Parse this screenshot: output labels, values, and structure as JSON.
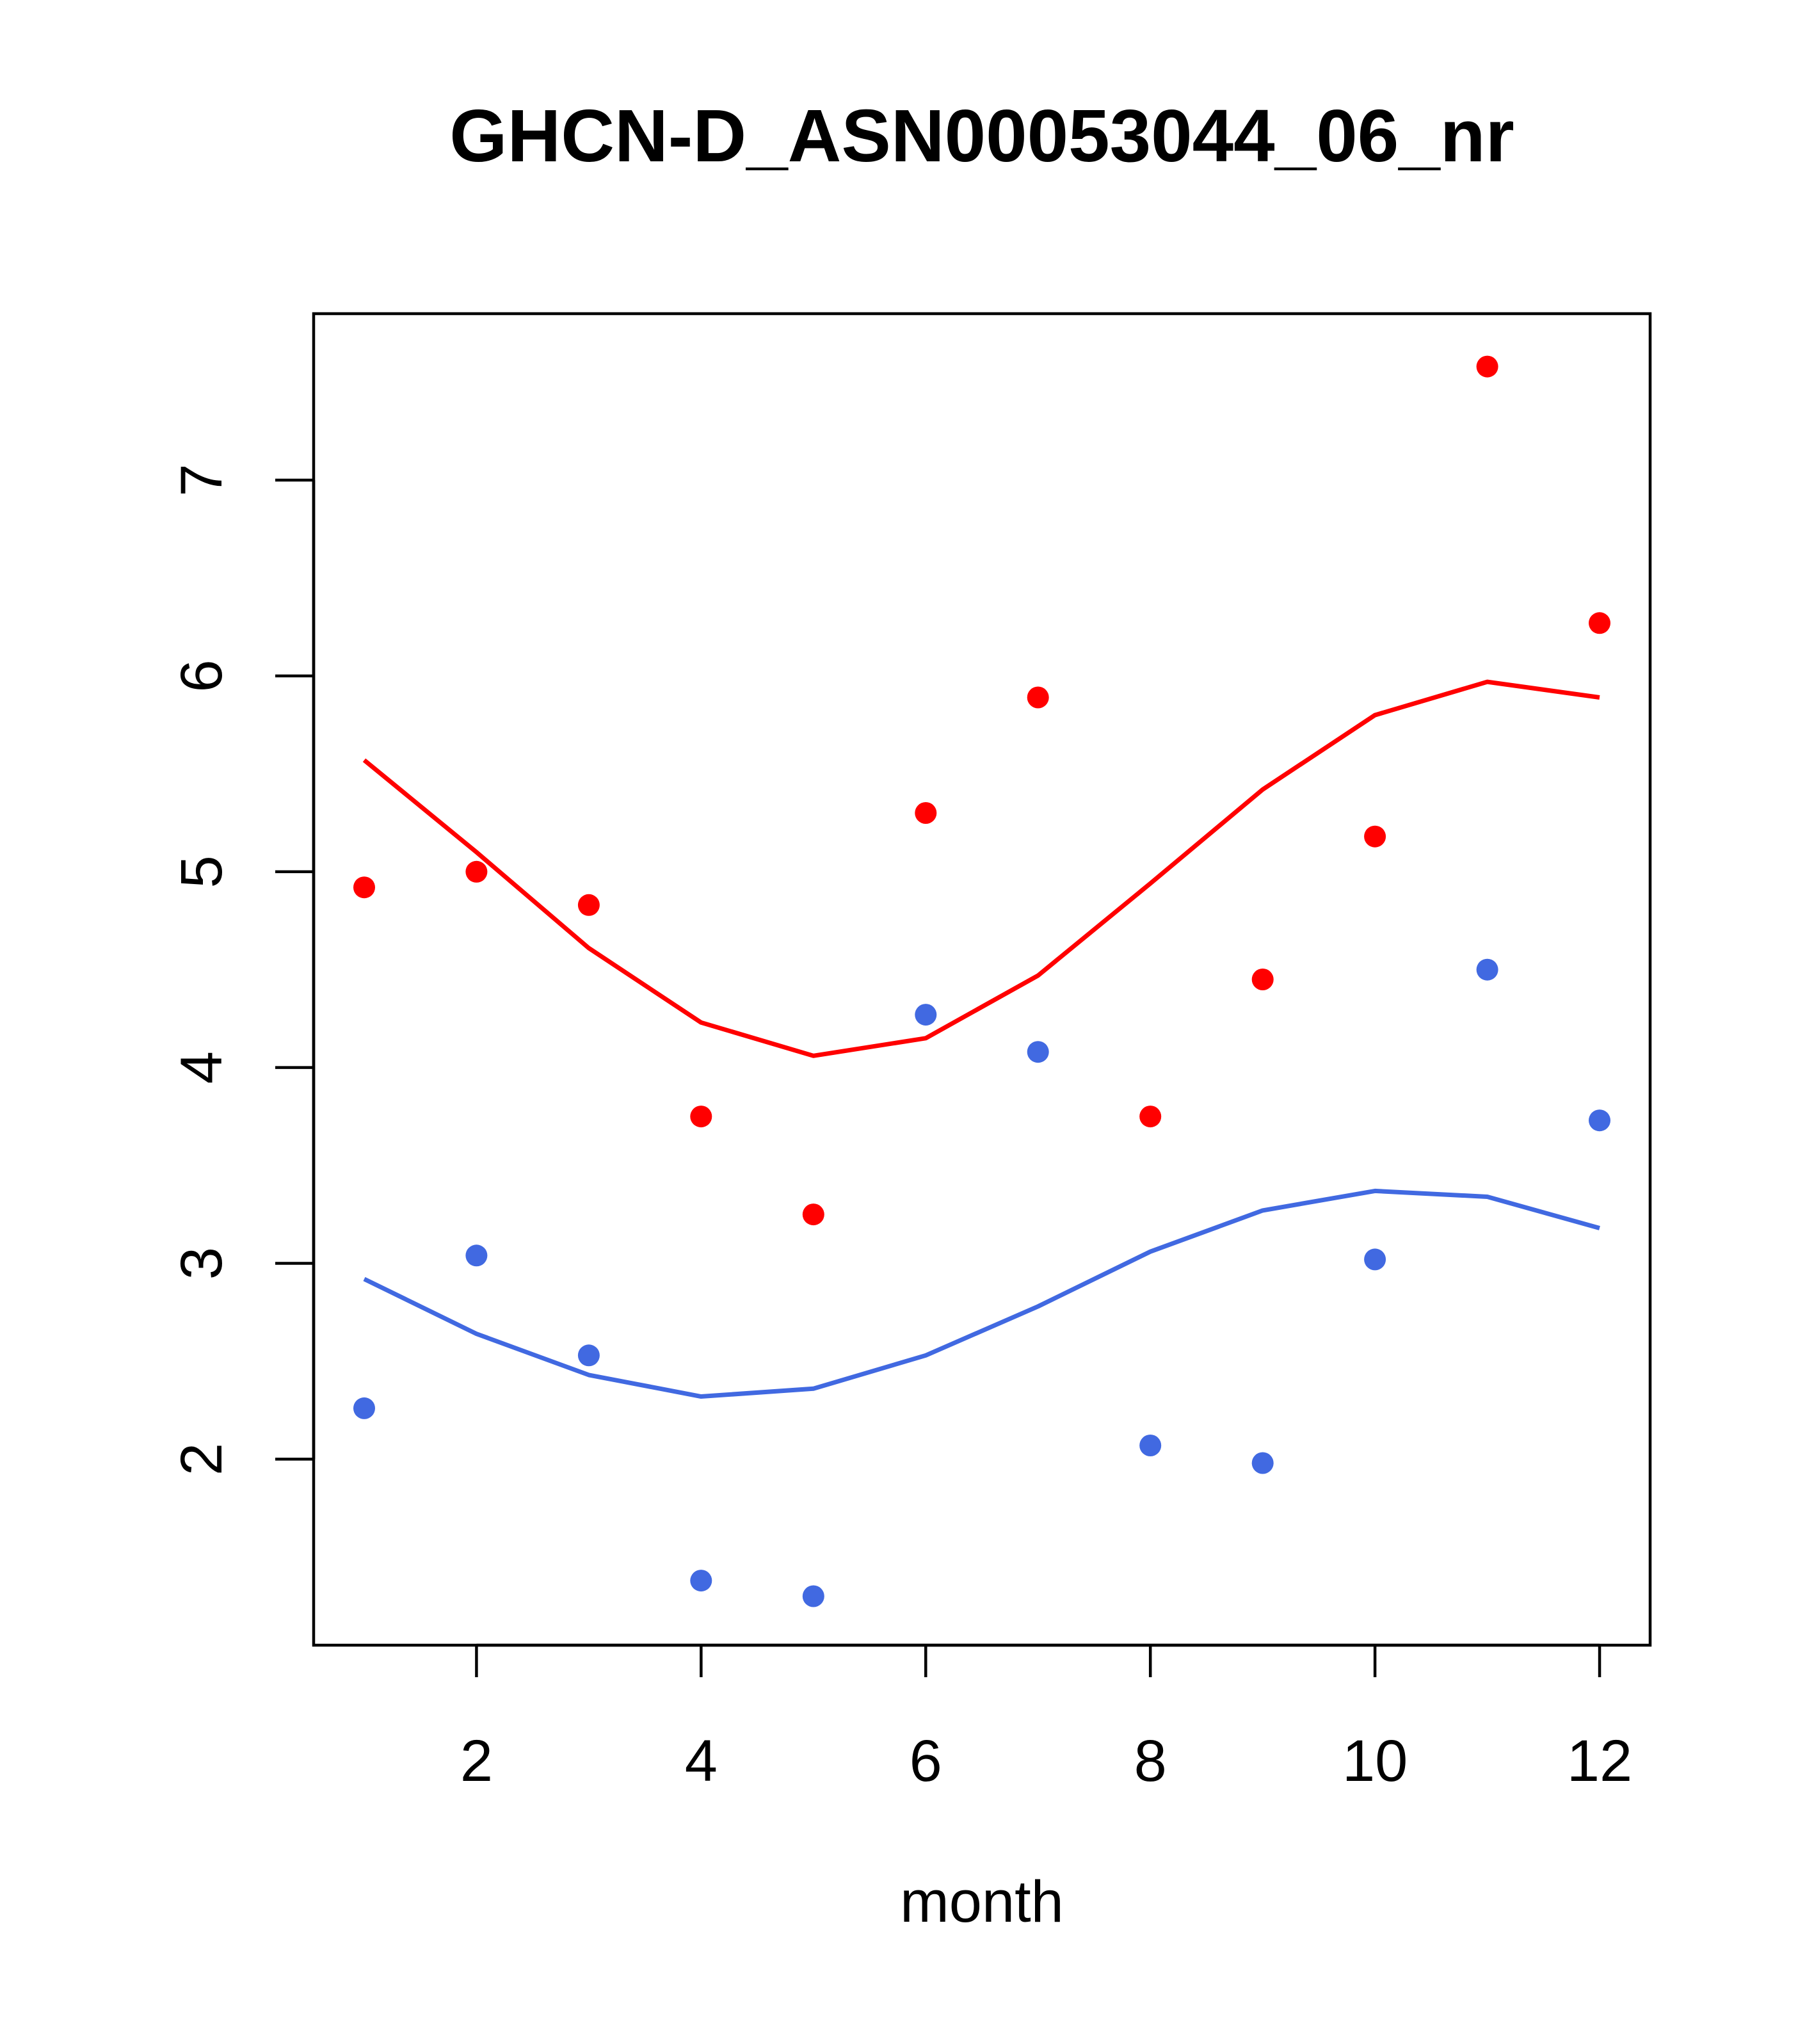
{
  "chart_data": {
    "type": "scatter",
    "title": "GHCN-D_ASN00053044_06_nr",
    "xlabel": "month",
    "ylabel": "",
    "xlim": [
      0.55,
      12.45
    ],
    "ylim": [
      1.05,
      7.85
    ],
    "x_ticks": [
      2,
      4,
      6,
      8,
      10,
      12
    ],
    "y_ticks": [
      2,
      3,
      4,
      5,
      6,
      7
    ],
    "grid": false,
    "legend": "none",
    "series": [
      {
        "mark": "points",
        "color": "#ff0000",
        "x": [
          1,
          2,
          3,
          4,
          5,
          6,
          7,
          8,
          9,
          10,
          11,
          12
        ],
        "y": [
          4.92,
          5.0,
          4.83,
          3.75,
          3.25,
          5.3,
          5.89,
          3.75,
          4.45,
          5.18,
          7.58,
          6.27
        ]
      },
      {
        "mark": "line",
        "color": "#ff0000",
        "x": [
          1,
          2,
          3,
          4,
          5,
          6,
          7,
          8,
          9,
          10,
          11,
          12
        ],
        "y": [
          5.57,
          5.1,
          4.61,
          4.23,
          4.06,
          4.15,
          4.47,
          4.94,
          5.42,
          5.8,
          5.97,
          5.89
        ]
      },
      {
        "mark": "points",
        "color": "#4169e1",
        "x": [
          1,
          2,
          3,
          4,
          5,
          6,
          7,
          8,
          9,
          10,
          11,
          12
        ],
        "y": [
          2.26,
          3.04,
          2.53,
          1.38,
          1.3,
          4.27,
          4.08,
          2.07,
          1.98,
          3.02,
          4.5,
          3.73
        ]
      },
      {
        "mark": "line",
        "color": "#4169e1",
        "x": [
          1,
          2,
          3,
          4,
          5,
          6,
          7,
          8,
          9,
          10,
          11,
          12
        ],
        "y": [
          2.92,
          2.64,
          2.43,
          2.32,
          2.36,
          2.53,
          2.78,
          3.06,
          3.27,
          3.37,
          3.34,
          3.18
        ]
      }
    ]
  }
}
